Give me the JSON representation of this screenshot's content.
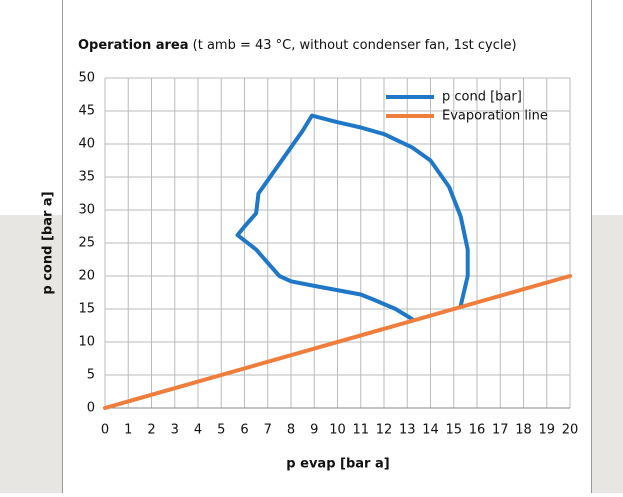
{
  "chart_data": {
    "type": "line",
    "title": "Operation area",
    "subtitle": "(t amb = 43 °C, without condenser fan, 1st cycle)",
    "x_label": "p evap [bar a]",
    "y_label": "p cond [bar a]",
    "xlim": [
      0,
      20
    ],
    "xticks": [
      0,
      1,
      2,
      3,
      4,
      5,
      6,
      7,
      8,
      9,
      10,
      11,
      12,
      13,
      14,
      15,
      16,
      17,
      18,
      19,
      20
    ],
    "ylim": [
      0,
      50
    ],
    "yticks": [
      0,
      5,
      10,
      15,
      20,
      25,
      30,
      35,
      40,
      45,
      50
    ],
    "grid": true,
    "legend": "upper right",
    "series": [
      {
        "name": "p cond [bar]",
        "color": "#1f77c8",
        "x": [
          13.2,
          12.5,
          11.5,
          11,
          9,
          8,
          7.5,
          7,
          6.5,
          5.7,
          6,
          6.5,
          6.6,
          7,
          7.5,
          8,
          8.5,
          8.9,
          10,
          11,
          12,
          13.2,
          14,
          14.8,
          15.3,
          15.6,
          15.6,
          15.4,
          15.3
        ],
        "values": [
          13.5,
          15,
          16.5,
          17.2,
          18.5,
          19.2,
          20,
          22,
          24,
          26.2,
          27.5,
          29.5,
          32.5,
          34.5,
          37,
          39.5,
          42,
          44.3,
          43.3,
          42.5,
          41.5,
          39.5,
          37.5,
          33.5,
          29,
          24,
          20,
          17,
          15.5
        ]
      },
      {
        "name": "Evaporation line",
        "color": "#ef7d3c",
        "x": [
          0,
          20
        ],
        "values": [
          0,
          20
        ]
      }
    ]
  }
}
